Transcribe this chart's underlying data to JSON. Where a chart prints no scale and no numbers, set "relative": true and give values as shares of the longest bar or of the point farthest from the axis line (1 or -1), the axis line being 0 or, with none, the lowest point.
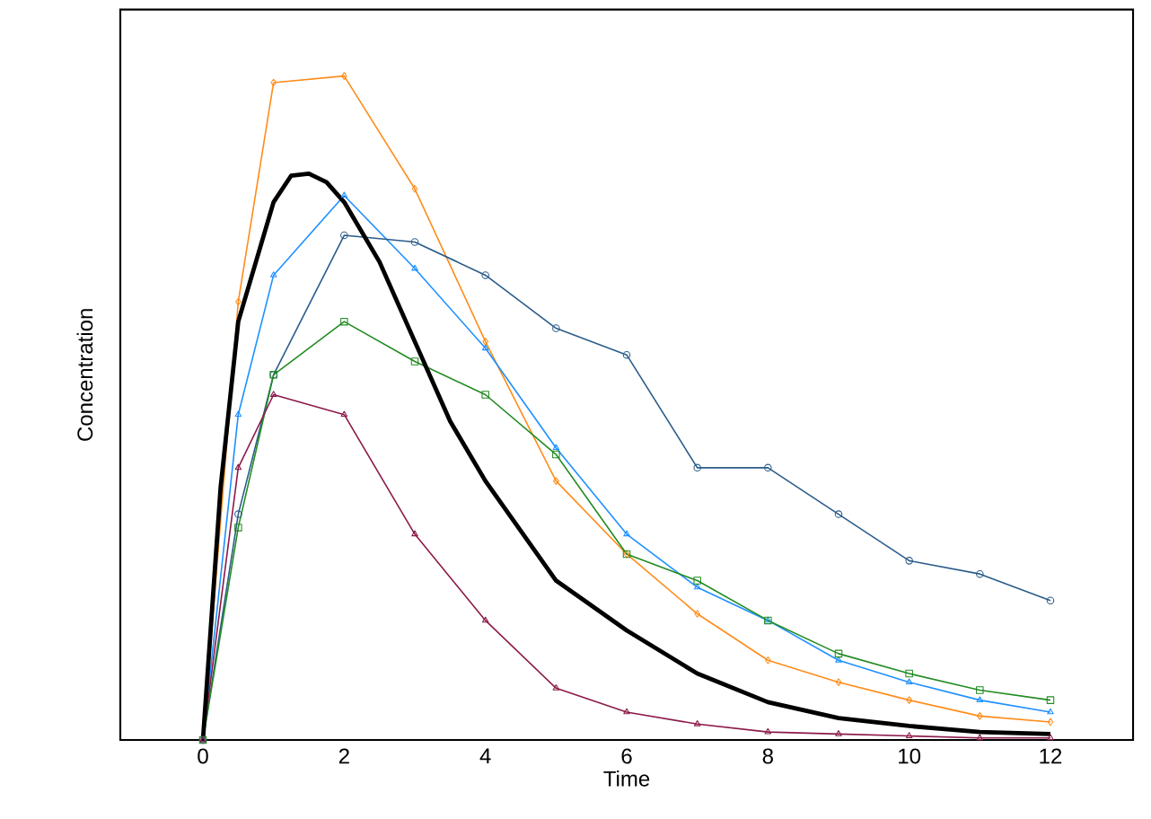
{
  "chart_data": {
    "type": "line",
    "xlabel": "Time",
    "ylabel": "Concentration",
    "relative": true,
    "xlim": [
      -1.17,
      13.17
    ],
    "xticks": [
      0,
      2,
      4,
      6,
      8,
      10,
      12
    ],
    "tick_labels": "x",
    "grid": false,
    "line_style": "solid",
    "x": [
      0,
      0.5,
      1,
      2,
      3,
      4,
      5,
      6,
      7,
      8,
      9,
      10,
      11,
      12
    ],
    "series": [
      {
        "color": "#ff8c1a",
        "marker": "diamond",
        "values": [
          0,
          0.66,
          0.99,
          1.0,
          0.83,
          0.6,
          0.39,
          0.28,
          0.19,
          0.12,
          0.087,
          0.06,
          0.036,
          0.027
        ]
      },
      {
        "color": "#1e90ff",
        "marker": "triangle",
        "values": [
          0,
          0.49,
          0.7,
          0.82,
          0.71,
          0.59,
          0.44,
          0.31,
          0.23,
          0.18,
          0.12,
          0.087,
          0.06,
          0.042
        ]
      },
      {
        "color": "#2b5c8a",
        "marker": "circle",
        "values": [
          0,
          0.34,
          0.55,
          0.76,
          0.75,
          0.7,
          0.62,
          0.58,
          0.41,
          0.41,
          0.34,
          0.27,
          0.25,
          0.21
        ]
      },
      {
        "color": "#228b22",
        "marker": "square",
        "values": [
          0,
          0.32,
          0.55,
          0.63,
          0.57,
          0.52,
          0.43,
          0.28,
          0.24,
          0.18,
          0.13,
          0.1,
          0.075,
          0.06
        ]
      },
      {
        "color": "#8b1a4a",
        "marker": "triangle",
        "values": [
          0,
          0.41,
          0.52,
          0.49,
          0.31,
          0.18,
          0.078,
          0.042,
          0.024,
          0.012,
          0.009,
          0.006,
          0.003,
          0.003
        ]
      },
      {
        "color": "#000000",
        "marker": "none",
        "x": [
          0,
          0.25,
          0.5,
          1,
          1.25,
          1.5,
          1.75,
          2,
          2.5,
          3,
          3.5,
          4,
          5,
          6,
          7,
          8,
          9,
          10,
          11,
          12
        ],
        "values": [
          0,
          0.38,
          0.63,
          0.81,
          0.85,
          0.853,
          0.84,
          0.81,
          0.72,
          0.6,
          0.48,
          0.39,
          0.24,
          0.165,
          0.1,
          0.057,
          0.033,
          0.021,
          0.012,
          0.009
        ]
      }
    ]
  }
}
